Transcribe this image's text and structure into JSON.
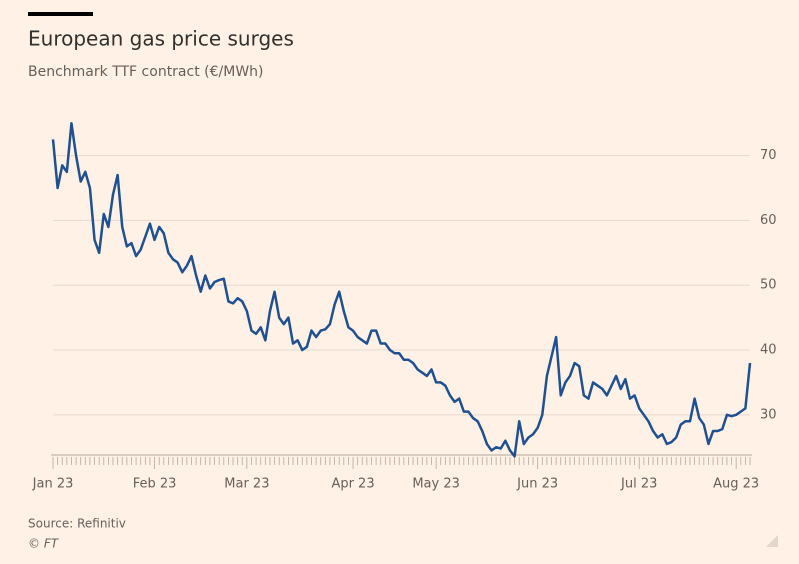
{
  "chart_data": {
    "type": "line",
    "title": "European gas price surges",
    "subtitle": "Benchmark TTF contract (€/MWh)",
    "source": "Source: Refinitiv",
    "credit": "© FT",
    "categories": [
      "Jan 23",
      null,
      null,
      null,
      null,
      null,
      null,
      null,
      null,
      null,
      null,
      null,
      null,
      null,
      null,
      null,
      null,
      null,
      null,
      null,
      null,
      null,
      "Feb 23",
      null,
      null,
      null,
      null,
      null,
      null,
      null,
      null,
      null,
      null,
      null,
      null,
      null,
      null,
      null,
      null,
      null,
      null,
      null,
      "Mar 23",
      null,
      null,
      null,
      null,
      null,
      null,
      null,
      null,
      null,
      null,
      null,
      null,
      null,
      null,
      null,
      null,
      null,
      null,
      null,
      null,
      null,
      null,
      "Apr 23",
      null,
      null,
      null,
      null,
      null,
      null,
      null,
      null,
      null,
      null,
      null,
      null,
      null,
      null,
      null,
      null,
      null,
      "May 23",
      null,
      null,
      null,
      null,
      null,
      null,
      null,
      null,
      null,
      null,
      null,
      null,
      null,
      null,
      null,
      null,
      null,
      null,
      null,
      null,
      null,
      "Jun 23",
      null,
      null,
      null,
      null,
      null,
      null,
      null,
      null,
      null,
      null,
      null,
      null,
      null,
      null,
      null,
      null,
      null,
      null,
      null,
      null,
      null,
      "Jul 23",
      null,
      null,
      null,
      null,
      null,
      null,
      null,
      null,
      null,
      null,
      null,
      null,
      null,
      null,
      null,
      null,
      null,
      null,
      null,
      null,
      "Aug 23",
      null,
      null,
      null
    ],
    "series": [
      {
        "name": "TTF",
        "color": "#1f5192",
        "values": [
          72.5,
          65,
          68.5,
          67.5,
          75,
          70,
          66,
          67.5,
          65,
          57,
          55,
          61,
          59,
          64,
          67,
          59,
          56,
          56.5,
          54.5,
          55.5,
          57.5,
          59.5,
          57,
          59,
          58,
          55,
          54,
          53.5,
          52,
          53,
          54.5,
          51.5,
          49,
          51.5,
          49.5,
          50.5,
          50.8,
          51,
          47.5,
          47.2,
          48,
          47.5,
          46,
          43,
          42.5,
          43.5,
          41.5,
          46,
          49,
          45,
          44,
          45,
          41,
          41.5,
          40,
          40.5,
          43,
          42,
          43,
          43.2,
          44,
          47,
          49,
          46,
          43.5,
          43,
          42,
          41.5,
          41,
          43,
          43,
          41,
          41,
          40,
          39.5,
          39.5,
          38.5,
          38.5,
          38,
          37,
          36.5,
          36,
          37,
          35,
          35,
          34.5,
          33,
          32,
          32.5,
          30.5,
          30.5,
          29.5,
          29,
          27.5,
          25.5,
          24.5,
          25,
          24.8,
          26,
          24.5,
          23.6,
          29,
          25.5,
          26.5,
          27,
          28,
          30,
          36,
          39,
          42,
          33,
          35,
          36,
          38,
          37.5,
          33,
          32.5,
          35,
          34.5,
          34,
          33,
          34.5,
          36,
          34,
          35.5,
          32.5,
          33,
          31,
          30,
          29,
          27.5,
          26.5,
          27,
          25.5,
          25.8,
          26.5,
          28.5,
          29,
          29,
          32.5,
          29.5,
          28.5,
          25.5,
          27.5,
          27.5,
          27.8,
          30,
          29.8,
          30,
          30.5,
          31,
          38
        ]
      }
    ],
    "ylim": [
      23.8,
      75.5
    ],
    "yticks": [
      30,
      40,
      50,
      60,
      70
    ],
    "grid": true
  }
}
